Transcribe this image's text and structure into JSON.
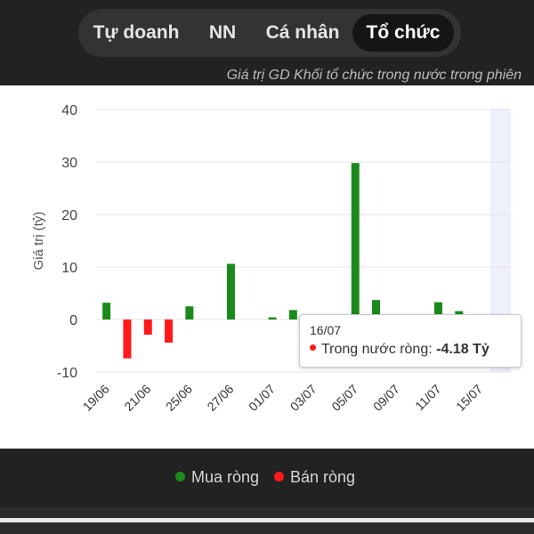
{
  "tabs": [
    {
      "label": "Tự doanh",
      "active": false
    },
    {
      "label": "NN",
      "active": false
    },
    {
      "label": "Cá nhân",
      "active": false
    },
    {
      "label": "Tổ chức",
      "active": true
    }
  ],
  "chart_subtitle": "Giá trị GD Khối tổ chức trong nước trong phiên",
  "tooltip": {
    "date": "16/07",
    "series_label": "Trong nước ròng:",
    "value_text": "-4.18 Tỷ"
  },
  "legend": [
    {
      "label": "Mua ròng",
      "color": "#1b8a1b"
    },
    {
      "label": "Bán ròng",
      "color": "#ff1a1a"
    }
  ],
  "colors": {
    "positive": "#1b8a1b",
    "negative": "#ff1a1a",
    "highlight": "#eef0fc"
  },
  "chart_data": {
    "type": "bar",
    "ylabel": "Giá trị (tỷ)",
    "xlabel": "",
    "ylim": [
      -10,
      40
    ],
    "yticks": [
      40,
      30,
      20,
      10,
      0,
      -10
    ],
    "grid": true,
    "legend_position": "bottom",
    "highlighted_category": "16/07",
    "categories": [
      "19/06",
      "20/06",
      "21/06",
      "24/06",
      "25/06",
      "26/06",
      "27/06",
      "28/06",
      "01/07",
      "02/07",
      "03/07",
      "04/07",
      "05/07",
      "08/07",
      "09/07",
      "10/07",
      "11/07",
      "12/07",
      "15/07",
      "16/07"
    ],
    "tick_labels": [
      "19/06",
      "21/06",
      "25/06",
      "27/06",
      "01/07",
      "03/07",
      "05/07",
      "09/07",
      "11/07",
      "15/07"
    ],
    "values": [
      3.2,
      -7.4,
      -2.9,
      -4.4,
      2.5,
      0.0,
      10.6,
      0.0,
      0.4,
      1.8,
      -4.4,
      0.4,
      29.8,
      3.7,
      -2.4,
      0.0,
      3.3,
      1.6,
      -2.5,
      -4.18
    ]
  }
}
